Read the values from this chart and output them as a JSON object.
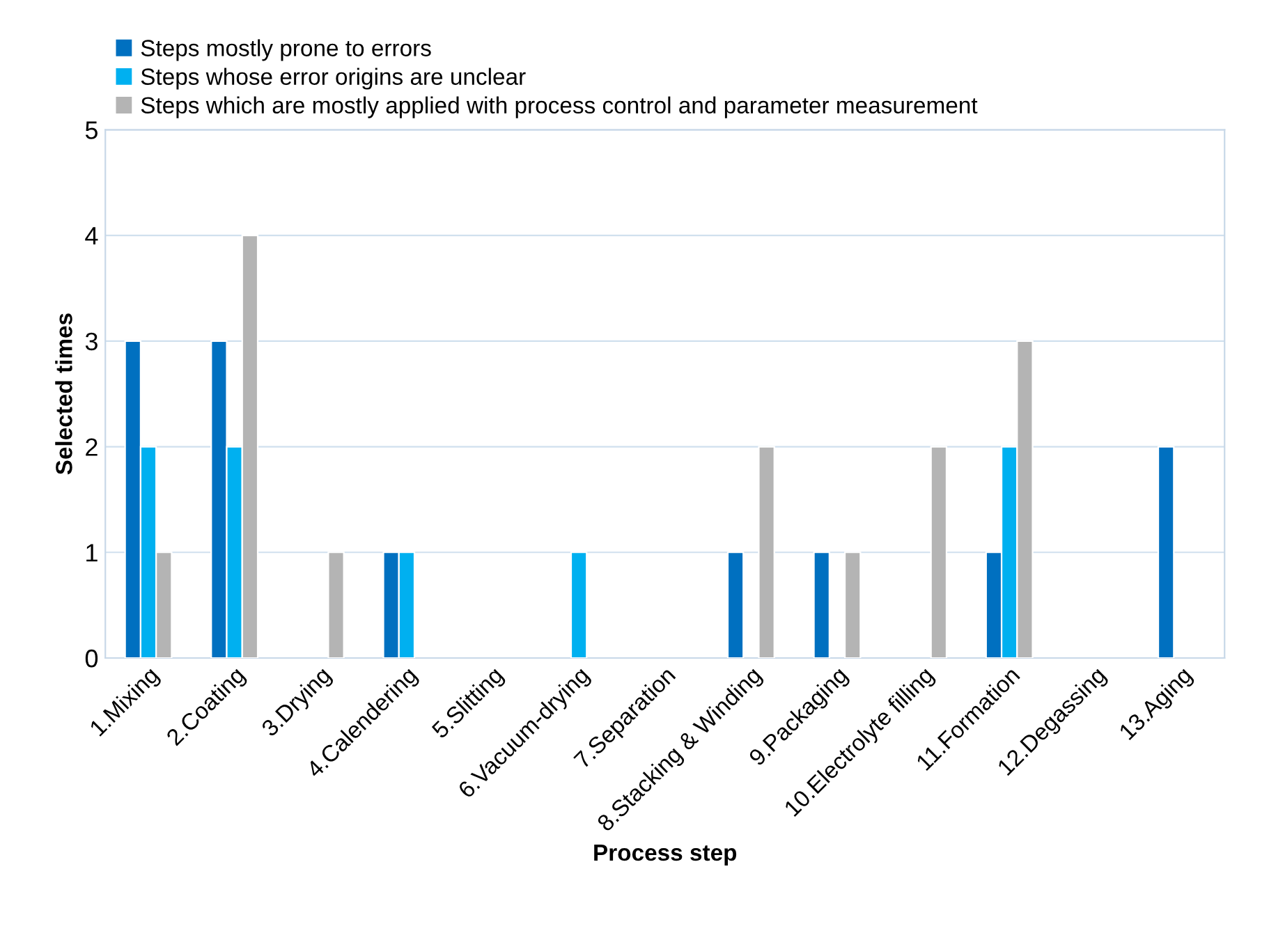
{
  "chart_data": {
    "type": "bar",
    "xlabel": "Process step",
    "ylabel": "Selected times",
    "categories": [
      "1.Mixing",
      "2.Coating",
      "3.Drying",
      "4.Calendering",
      "5.Slitting",
      "6.Vacuum-drying",
      "7.Separation",
      "8.Stacking & Winding",
      "9.Packaging",
      "10.Electrolyte filling",
      "11.Formation",
      "12.Degassing",
      "13.Aging"
    ],
    "series": [
      {
        "name": "Steps mostly prone to errors",
        "color": "#0070c0",
        "values": [
          3,
          3,
          null,
          1,
          null,
          null,
          null,
          1,
          1,
          null,
          1,
          null,
          2
        ]
      },
      {
        "name": "Steps whose error origins are unclear",
        "color": "#00b0f0",
        "values": [
          2,
          2,
          null,
          1,
          null,
          1,
          null,
          null,
          null,
          null,
          2,
          null,
          null
        ]
      },
      {
        "name": "Steps which are mostly applied with process control and parameter measurement",
        "color": "#b4b4b4",
        "values": [
          1,
          4,
          1,
          null,
          null,
          null,
          null,
          2,
          1,
          2,
          3,
          null,
          null
        ]
      }
    ],
    "ylim": [
      0,
      5
    ],
    "yticks": [
      0,
      1,
      2,
      3,
      4,
      5
    ],
    "grid": "y",
    "legend": "top left"
  }
}
